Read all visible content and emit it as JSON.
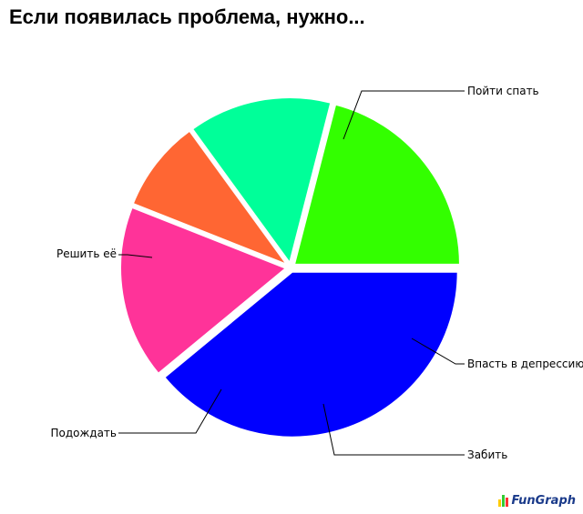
{
  "chart_data": {
    "type": "pie",
    "title": "Если появилась проблема, нужно...",
    "slices": [
      {
        "label": "Пойти спать",
        "value": 39,
        "color": "#0000ff"
      },
      {
        "label": "Впасть в депрессию",
        "value": 17,
        "color": "#ff3399"
      },
      {
        "label": "Забить",
        "value": 9,
        "color": "#ff6633"
      },
      {
        "label": "Подождать",
        "value": 14,
        "color": "#00ff99"
      },
      {
        "label": "Решить её",
        "value": 21,
        "color": "#33ff00"
      }
    ],
    "start_angle_deg": 0,
    "direction": "clockwise"
  },
  "branding": {
    "logo_text": "FunGraph",
    "colors": [
      "#ffcc00",
      "#33cc33",
      "#ff3333",
      "#3366ff"
    ]
  }
}
